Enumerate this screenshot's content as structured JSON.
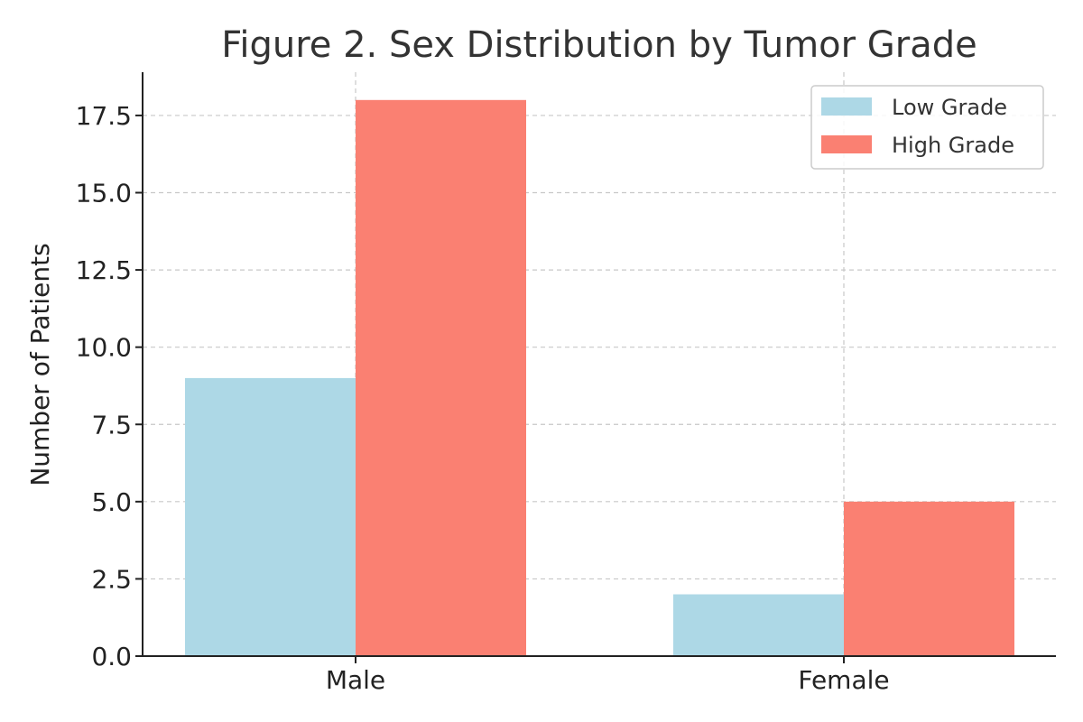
{
  "chart_data": {
    "type": "bar",
    "title": "Figure 2. Sex Distribution by Tumor Grade",
    "xlabel": "",
    "ylabel": "Number of Patients",
    "categories": [
      "Male",
      "Female"
    ],
    "series": [
      {
        "name": "Low Grade",
        "values": [
          9,
          2
        ],
        "color": "#add8e6"
      },
      {
        "name": "High Grade",
        "values": [
          18,
          5
        ],
        "color": "#fa8072"
      }
    ],
    "ylim": [
      0,
      18.9
    ],
    "yticks": [
      "0.0",
      "2.5",
      "5.0",
      "7.5",
      "10.0",
      "12.5",
      "15.0",
      "17.5"
    ],
    "ytick_values": [
      0,
      2.5,
      5,
      7.5,
      10,
      12.5,
      15,
      17.5
    ],
    "grid": true,
    "legend_position": "top-right"
  }
}
